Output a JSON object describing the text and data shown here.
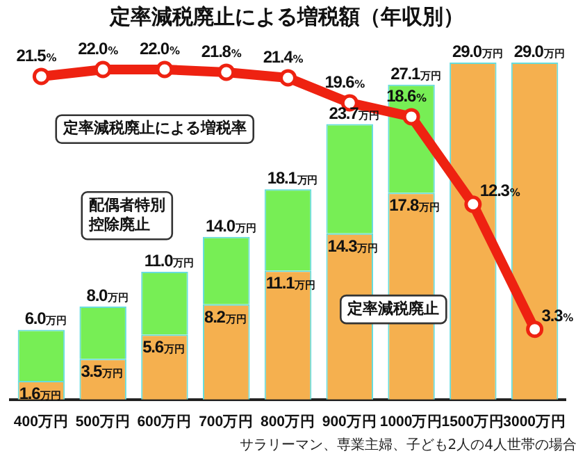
{
  "chart_data": {
    "type": "bar",
    "title": "定率減税廃止による増税額（年収別）",
    "categories": [
      "400万円",
      "500万円",
      "600万円",
      "700万円",
      "800万円",
      "900万円",
      "1000万円",
      "1500万円",
      "3000万円"
    ],
    "stacked": true,
    "series": [
      {
        "name": "定率減税廃止",
        "color": "#f5b04f",
        "values": [
          1.6,
          3.5,
          5.6,
          8.2,
          11.1,
          14.3,
          17.8,
          29.0,
          29.0
        ],
        "value_labels": [
          "1.6万円",
          "3.5万円",
          "5.6万円",
          "8.2万円",
          "11.1万円",
          "14.3万円",
          "17.8万円",
          null,
          null
        ]
      },
      {
        "name": "配偶者特別控除廃止",
        "color": "#77ee55",
        "values": [
          4.4,
          4.5,
          5.4,
          5.8,
          7.0,
          9.4,
          9.3,
          0,
          0
        ]
      },
      {
        "name": "定率減税廃止による増税率",
        "type": "line",
        "axis": "y2",
        "color": "#ee2211",
        "values": [
          21.5,
          22.0,
          22.0,
          21.8,
          21.4,
          19.6,
          18.6,
          12.3,
          3.3
        ],
        "value_labels": [
          "21.5%",
          "22.0%",
          "22.0%",
          "21.8%",
          "21.4%",
          "19.6%",
          "18.6%",
          "12.3%",
          "3.3%"
        ]
      }
    ],
    "totals": [
      "6.0万円",
      "8.0万円",
      "11.0万円",
      "14.0万円",
      "18.1万円",
      "23.7万円",
      "27.1万円",
      "29.0万円",
      "29.0万円"
    ],
    "tick_labels": "x",
    "grid": false,
    "legend": false,
    "marker": "circle",
    "annotations": [
      "サラリーマン、専業主婦、子ども2人の4人世帯の場合"
    ]
  }
}
